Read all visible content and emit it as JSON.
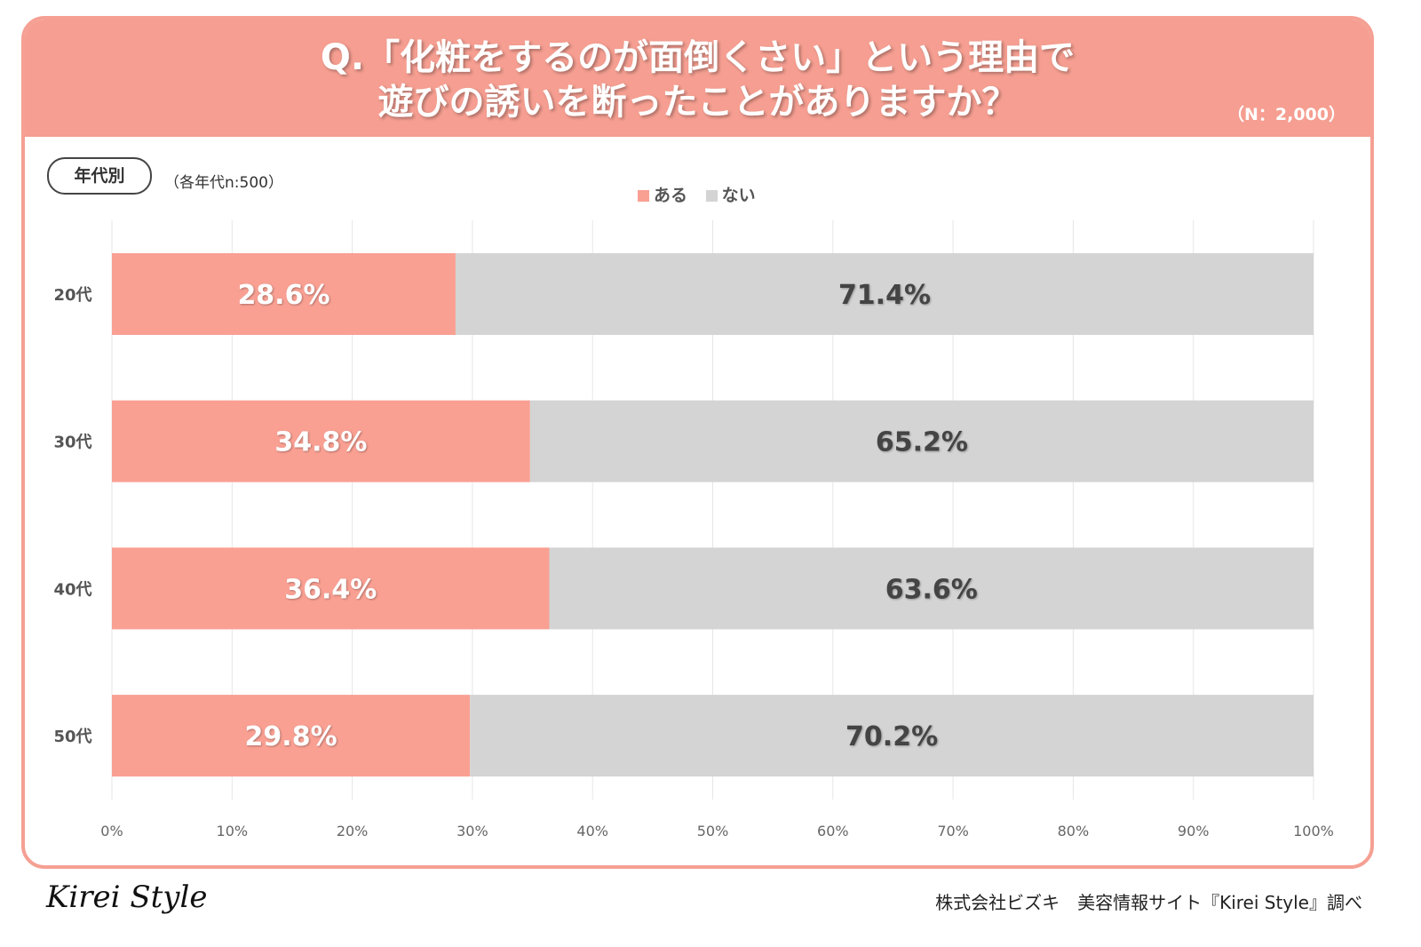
{
  "header": {
    "title_line1": "Q.「化粧をするのが面倒くさい」という理由で",
    "title_line2": "遊びの誘いを断ったことがありますか？",
    "sample": "（N：2,000）"
  },
  "segment": {
    "label": "年代別",
    "sample": "（各年代n:500）"
  },
  "footer": {
    "logo": "Kirei Style",
    "source": "株式会社ビズキ　美容情報サイト『Kirei Style』調べ"
  },
  "chart_data": {
    "type": "bar",
    "orientation": "horizontal",
    "stacked": true,
    "categories": [
      "20代",
      "30代",
      "40代",
      "50代"
    ],
    "series": [
      {
        "name": "ある",
        "color": "#f9a093",
        "values": [
          28.6,
          34.8,
          36.4,
          29.8
        ],
        "labels": [
          "28.6%",
          "34.8%",
          "36.4%",
          "29.8%"
        ]
      },
      {
        "name": "ない",
        "color": "#d4d4d4",
        "values": [
          71.4,
          65.2,
          63.6,
          70.2
        ],
        "labels": [
          "71.4%",
          "65.2%",
          "63.6%",
          "70.2%"
        ]
      }
    ],
    "xlim": [
      0,
      100
    ],
    "xticks": [
      "0%",
      "10%",
      "20%",
      "30%",
      "40%",
      "50%",
      "60%",
      "70%",
      "80%",
      "90%",
      "100%"
    ],
    "grid": true,
    "legend": "top-center"
  }
}
